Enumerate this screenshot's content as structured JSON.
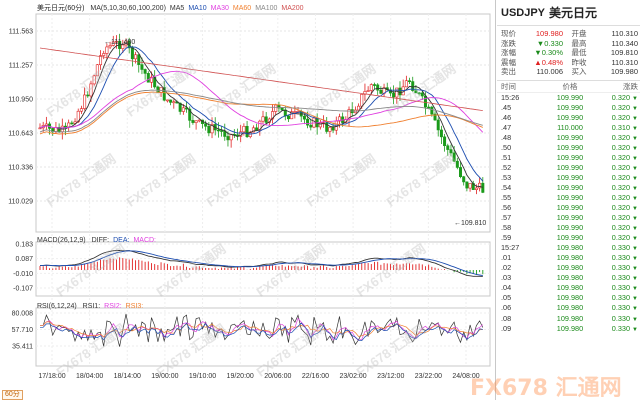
{
  "chart": {
    "main_title": "美元日元(60分)",
    "ma_legend": [
      {
        "label": "MA(5,10,30,60,100,200)",
        "color": "#333333"
      },
      {
        "label": "MA5",
        "color": "#333333"
      },
      {
        "label": "MA10",
        "color": "#1c4db0"
      },
      {
        "label": "MA30",
        "color": "#e040e0"
      },
      {
        "label": "MA60",
        "color": "#f08030"
      },
      {
        "label": "MA100",
        "color": "#888888"
      },
      {
        "label": "MA200",
        "color": "#d05050"
      }
    ],
    "price_axis": [
      "111.563",
      "111.257",
      "110.950",
      "110.643",
      "110.336",
      "110.029"
    ],
    "high_label": "111.480",
    "low_label": "109.810",
    "macd_title": "MACD(26,12,9)",
    "macd_legend": [
      {
        "label": "DIFF:",
        "color": "#333333"
      },
      {
        "label": "DEA:",
        "color": "#1c4db0"
      },
      {
        "label": "MACD:",
        "color": "#e040e0"
      }
    ],
    "macd_axis": [
      "0.183",
      "0.087",
      "-0.010",
      "-0.107"
    ],
    "rsi_title": "RSI(6,12,24)",
    "rsi_legend": [
      {
        "label": "RSI1:",
        "color": "#333333"
      },
      {
        "label": "RSI2:",
        "color": "#e040e0"
      },
      {
        "label": "RSI3:",
        "color": "#f08030"
      }
    ],
    "rsi_axis": [
      "80.008",
      "57.710",
      "35.411"
    ],
    "time_axis": [
      "17/18:00",
      "18/04:00",
      "18/14:00",
      "19/00:00",
      "19/10:00",
      "19/20:00",
      "20/06:00",
      "22/16:00",
      "23/02:00",
      "23/12:00",
      "23/22:00",
      "24/08:00"
    ],
    "period": "60分",
    "watermark": "FX678 汇通网",
    "logo_text": "FX678 汇通网"
  },
  "quote": {
    "symbol": "USDJPY",
    "name": "美元日元",
    "rows": [
      {
        "l": "现价",
        "v": "109.980",
        "vc": "red",
        "l2": "开盘",
        "v2": "110.310"
      },
      {
        "l": "涨跌",
        "v": "▼0.330",
        "vc": "green",
        "l2": "最高",
        "v2": "110.340",
        "v2c": "red"
      },
      {
        "l": "涨幅",
        "v": "▼0.30%",
        "vc": "green",
        "l2": "最低",
        "v2": "109.810"
      },
      {
        "l": "震幅",
        "v": "▲0.48%",
        "vc": "red",
        "l2": "昨收",
        "v2": "110.310"
      },
      {
        "l": "卖出",
        "v": "110.006",
        "vc": "",
        "l2": "买入",
        "v2": "109.980"
      }
    ]
  },
  "ticks": {
    "headers": {
      "time": "时间",
      "price": "价格",
      "change": "涨跌"
    },
    "rows": [
      {
        "t": "15:26",
        "p": "109.990",
        "c": "0.320"
      },
      {
        "t": ".45",
        "p": "109.990",
        "c": "0.320"
      },
      {
        "t": ".46",
        "p": "109.990",
        "c": "0.320"
      },
      {
        "t": ".47",
        "p": "110.000",
        "c": "0.310"
      },
      {
        "t": ".48",
        "p": "109.990",
        "c": "0.320"
      },
      {
        "t": ".50",
        "p": "109.990",
        "c": "0.320"
      },
      {
        "t": ".51",
        "p": "109.990",
        "c": "0.320"
      },
      {
        "t": ".52",
        "p": "109.990",
        "c": "0.320"
      },
      {
        "t": ".53",
        "p": "109.990",
        "c": "0.320"
      },
      {
        "t": ".54",
        "p": "109.990",
        "c": "0.320"
      },
      {
        "t": ".55",
        "p": "109.990",
        "c": "0.320"
      },
      {
        "t": ".56",
        "p": "109.990",
        "c": "0.320"
      },
      {
        "t": ".57",
        "p": "109.990",
        "c": "0.320"
      },
      {
        "t": ".58",
        "p": "109.990",
        "c": "0.320"
      },
      {
        "t": ".59",
        "p": "109.990",
        "c": "0.320"
      },
      {
        "t": "15:27",
        "p": "109.980",
        "c": "0.330"
      },
      {
        "t": ".01",
        "p": "109.980",
        "c": "0.330"
      },
      {
        "t": ".02",
        "p": "109.980",
        "c": "0.330"
      },
      {
        "t": ".03",
        "p": "109.980",
        "c": "0.330"
      },
      {
        "t": ".04",
        "p": "109.980",
        "c": "0.330"
      },
      {
        "t": ".05",
        "p": "109.980",
        "c": "0.330"
      },
      {
        "t": ".06",
        "p": "109.980",
        "c": "0.330"
      },
      {
        "t": ".08",
        "p": "109.980",
        "c": "0.330"
      },
      {
        "t": ".09",
        "p": "109.980",
        "c": "0.330"
      }
    ]
  }
}
